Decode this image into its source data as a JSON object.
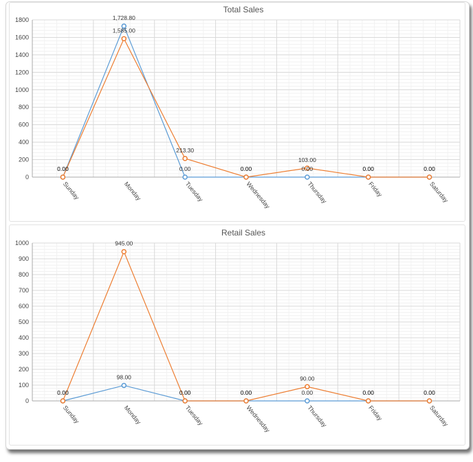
{
  "chart_data": [
    {
      "type": "line",
      "title": "Total Sales",
      "categories": [
        "Sunday",
        "Monday",
        "Tuesday",
        "Wednesday",
        "Thursday",
        "Friday",
        "Saturday"
      ],
      "ylim": [
        0,
        1800
      ],
      "yticks": [
        0,
        200,
        400,
        600,
        800,
        1000,
        1200,
        1400,
        1600,
        1800
      ],
      "grid": true,
      "series": [
        {
          "color": "#5b9bd5",
          "values": [
            0,
            1728.8,
            0,
            0,
            0,
            0,
            0
          ],
          "labels": [
            "0.00",
            "1,728.80",
            "0.00",
            "0.00",
            "0.00",
            "0.00",
            "0.00"
          ]
        },
        {
          "color": "#ed7d31",
          "values": [
            0,
            1585.0,
            213.3,
            0,
            103.0,
            0,
            0
          ],
          "labels": [
            "0.00",
            "1,585.00",
            "213.30",
            "0.00",
            "103.00",
            "0.00",
            "0.00"
          ]
        }
      ]
    },
    {
      "type": "line",
      "title": "Retail Sales",
      "categories": [
        "Sunday",
        "Monday",
        "Tuesday",
        "Wednesday",
        "Thursday",
        "Friday",
        "Saturday"
      ],
      "ylim": [
        0,
        1000
      ],
      "yticks": [
        0,
        100,
        200,
        300,
        400,
        500,
        600,
        700,
        800,
        900,
        1000
      ],
      "grid": true,
      "series": [
        {
          "color": "#5b9bd5",
          "values": [
            0,
            98.0,
            0,
            0,
            0,
            0,
            0
          ],
          "labels": [
            "0.00",
            "98.00",
            "0.00",
            "0.00",
            "0.00",
            "0.00",
            "0.00"
          ]
        },
        {
          "color": "#ed7d31",
          "values": [
            0,
            945.0,
            0,
            0,
            90.0,
            0,
            0
          ],
          "labels": [
            "0.00",
            "945.00",
            "0.00",
            "0.00",
            "90.00",
            "0.00",
            "0.00"
          ]
        }
      ]
    }
  ]
}
